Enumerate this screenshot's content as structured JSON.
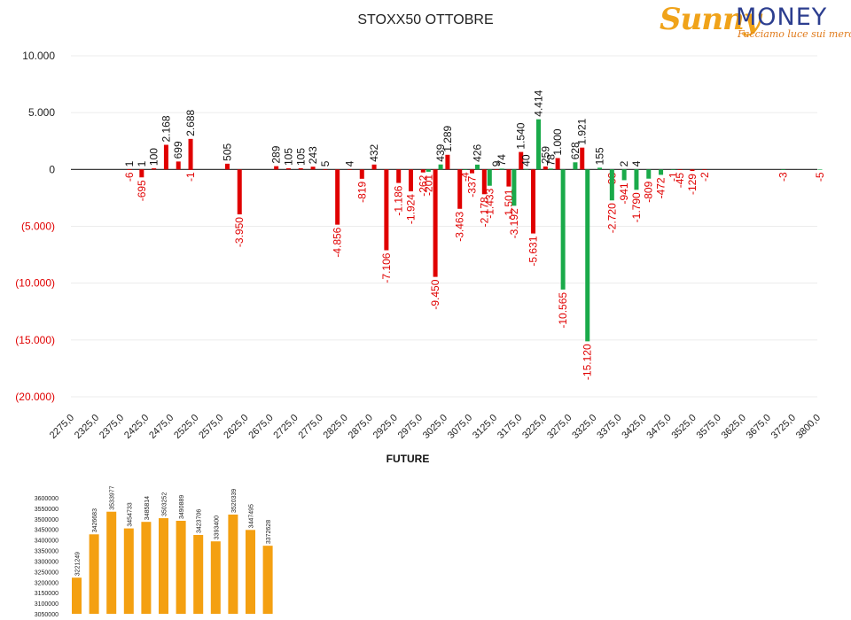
{
  "header": {
    "title": "STOXX50 OTTOBRE",
    "logo_word1": "Sunny",
    "logo_word2": "MONEY",
    "logo_tagline": "Facciamo luce sui mercati"
  },
  "future_title": "FUTURE",
  "colors": {
    "red": "#e00000",
    "green": "#1aaa4a",
    "orange": "#f4a011",
    "negative_label": "#e00000"
  },
  "chart_data": [
    {
      "type": "bar",
      "title": "STOXX50 OTTOBRE",
      "ylim": [
        -20000,
        10000
      ],
      "yticks": [
        {
          "value": 10000,
          "label": "10.000"
        },
        {
          "value": 5000,
          "label": "5.000"
        },
        {
          "value": 0,
          "label": "0"
        },
        {
          "value": -5000,
          "label": "(5.000)"
        },
        {
          "value": -10000,
          "label": "(10.000)"
        },
        {
          "value": -15000,
          "label": "(15.000)"
        },
        {
          "value": -20000,
          "label": "(20.000)"
        }
      ],
      "xlim": [
        2275,
        3800
      ],
      "xticks": [
        "2275,0",
        "2325,0",
        "2375,0",
        "2425,0",
        "2475,0",
        "2525,0",
        "2575,0",
        "2625,0",
        "2675,0",
        "2725,0",
        "2775,0",
        "2825,0",
        "2875,0",
        "2925,0",
        "2975,0",
        "3025,0",
        "3075,0",
        "3125,0",
        "3175,0",
        "3225,0",
        "3275,0",
        "3325,0",
        "3375,0",
        "3425,0",
        "3475,0",
        "3525,0",
        "3575,0",
        "3625,0",
        "3675,0",
        "3725,0",
        "3800,0"
      ],
      "grid": true,
      "series": [
        {
          "color": "red",
          "points": [
            {
              "strike": 2400,
              "value": 1,
              "label": "1"
            },
            {
              "strike": 2400,
              "value": -6,
              "label": "-6"
            },
            {
              "strike": 2425,
              "value": 1,
              "label": "1"
            },
            {
              "strike": 2425,
              "value": -695,
              "label": "-695"
            },
            {
              "strike": 2450,
              "value": 100,
              "label": "100"
            },
            {
              "strike": 2475,
              "value": 2168,
              "label": "2.168"
            },
            {
              "strike": 2500,
              "value": 699,
              "label": "699"
            },
            {
              "strike": 2525,
              "value": 2688,
              "label": "2.688"
            },
            {
              "strike": 2525,
              "value": -1,
              "label": "-1"
            },
            {
              "strike": 2600,
              "value": 505,
              "label": "505"
            },
            {
              "strike": 2625,
              "value": -3950,
              "label": "-3.950"
            },
            {
              "strike": 2700,
              "value": 289,
              "label": "289"
            },
            {
              "strike": 2725,
              "value": 105,
              "label": "105"
            },
            {
              "strike": 2750,
              "value": 105,
              "label": "105"
            },
            {
              "strike": 2775,
              "value": 243,
              "label": "243"
            },
            {
              "strike": 2800,
              "value": 5,
              "label": "5"
            },
            {
              "strike": 2825,
              "value": -4856,
              "label": "-4.856"
            },
            {
              "strike": 2850,
              "value": 4,
              "label": "4"
            },
            {
              "strike": 2875,
              "value": -819,
              "label": "-819"
            },
            {
              "strike": 2900,
              "value": 432,
              "label": "432"
            },
            {
              "strike": 2925,
              "value": -7106,
              "label": "-7.106"
            },
            {
              "strike": 2950,
              "value": -1186,
              "label": "-1.186"
            },
            {
              "strike": 2975,
              "value": -1924,
              "label": "-1.924"
            },
            {
              "strike": 3000,
              "value": -262,
              "label": "-262"
            },
            {
              "strike": 3025,
              "value": -9450,
              "label": "-9.450"
            },
            {
              "strike": 3050,
              "value": 1289,
              "label": "1.289"
            },
            {
              "strike": 3075,
              "value": -3463,
              "label": "-3.463"
            },
            {
              "strike": 3100,
              "value": -337,
              "label": "-337"
            },
            {
              "strike": 3125,
              "value": -2178,
              "label": "-2.178"
            },
            {
              "strike": 3150,
              "value": 9,
              "label": "9"
            },
            {
              "strike": 3175,
              "value": -1501,
              "label": "-1.501"
            },
            {
              "strike": 3200,
              "value": 1540,
              "label": "1.540"
            },
            {
              "strike": 3225,
              "value": -5631,
              "label": "-5.631"
            },
            {
              "strike": 3250,
              "value": 259,
              "label": "259"
            },
            {
              "strike": 3275,
              "value": 1000,
              "label": "1.000"
            },
            {
              "strike": 3325,
              "value": 1921,
              "label": "1.921"
            },
            {
              "strike": 3525,
              "value": -45,
              "label": "-45"
            },
            {
              "strike": 3550,
              "value": -129,
              "label": "-129"
            },
            {
              "strike": 3575,
              "value": -2,
              "label": "-2"
            }
          ]
        },
        {
          "color": "green",
          "points": [
            {
              "strike": 3000,
              "value": -201,
              "label": "-201"
            },
            {
              "strike": 3025,
              "value": 439,
              "label": "439"
            },
            {
              "strike": 3075,
              "value": -4,
              "label": "-4"
            },
            {
              "strike": 3100,
              "value": 426,
              "label": "426"
            },
            {
              "strike": 3125,
              "value": -1433,
              "label": "-1.433"
            },
            {
              "strike": 3150,
              "value": 74,
              "label": "74"
            },
            {
              "strike": 3175,
              "value": -3192,
              "label": "-3.192"
            },
            {
              "strike": 3200,
              "value": 40,
              "label": "40"
            },
            {
              "strike": 3225,
              "value": 4414,
              "label": "4.414"
            },
            {
              "strike": 3250,
              "value": 78,
              "label": "78"
            },
            {
              "strike": 3275,
              "value": -10565,
              "label": "-10.565"
            },
            {
              "strike": 3300,
              "value": 628,
              "label": "628"
            },
            {
              "strike": 3325,
              "value": -15120,
              "label": "-15.120"
            },
            {
              "strike": 3350,
              "value": 155,
              "label": "155"
            },
            {
              "strike": 3375,
              "value": -33,
              "label": "-33"
            },
            {
              "strike": 3375,
              "value": -2720,
              "label": "-2.720"
            },
            {
              "strike": 3400,
              "value": 2,
              "label": "2"
            },
            {
              "strike": 3400,
              "value": -941,
              "label": "-941"
            },
            {
              "strike": 3425,
              "value": 4,
              "label": "4"
            },
            {
              "strike": 3425,
              "value": -1790,
              "label": "-1.790"
            },
            {
              "strike": 3450,
              "value": -809,
              "label": "-809"
            },
            {
              "strike": 3475,
              "value": -472,
              "label": "-472"
            },
            {
              "strike": 3500,
              "value": -1,
              "label": "-1"
            },
            {
              "strike": 3725,
              "value": -3,
              "label": "-3"
            },
            {
              "strike": 3800,
              "value": -5,
              "label": "-5"
            }
          ]
        }
      ]
    },
    {
      "type": "bar",
      "title": "FUTURE",
      "ylim": [
        3050000,
        3600000
      ],
      "yticks": [
        "3600000",
        "3550000",
        "3500000",
        "3450000",
        "3400000",
        "3350000",
        "3300000",
        "3250000",
        "3200000",
        "3150000",
        "3100000",
        "3050000"
      ],
      "values": [
        3221249,
        3426683,
        3533977,
        3454733,
        3485814,
        3503252,
        3490889,
        3423706,
        3393400,
        3520339,
        3447495,
        3372628
      ],
      "labels": [
        "3221249",
        "3426683",
        "3533977",
        "3454733",
        "3485814",
        "3503252",
        "3490889",
        "3423706",
        "3393400",
        "3520339",
        "3447495",
        "3372628"
      ]
    }
  ]
}
